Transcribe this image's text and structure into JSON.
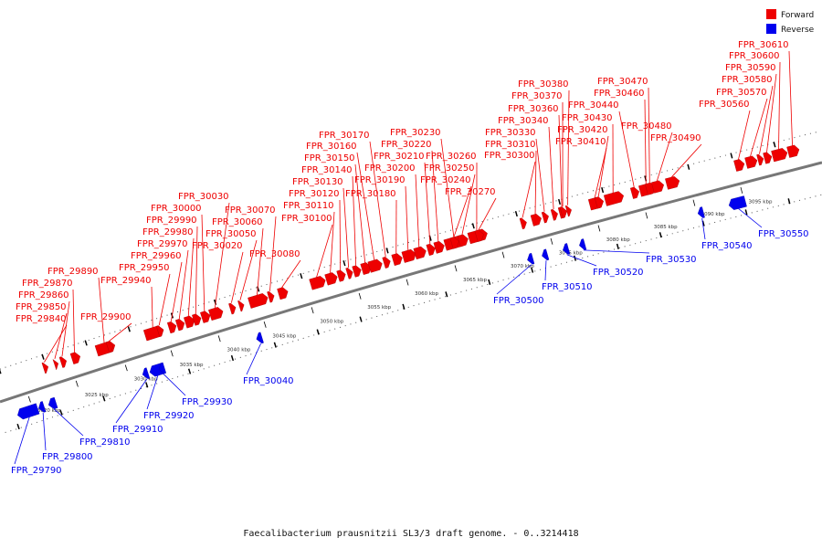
{
  "caption": "Faecalibacterium prausnitzii SL3/3 draft genome. - 0..3214418",
  "legend": [
    {
      "label": "Forward",
      "color": "#ee0000"
    },
    {
      "label": "Reverse",
      "color": "#0000ee"
    }
  ],
  "colors": {
    "forward": "#ee0000",
    "reverse": "#0000ee",
    "backbone": "#777777"
  },
  "scale_labels": [
    "3020 kbp",
    "3025 kbp",
    "3030 kbp",
    "3035 kbp",
    "3040 kbp",
    "3045 kbp",
    "3050 kbp",
    "3055 kbp",
    "3060 kbp",
    "3065 kbp",
    "3070 kbp",
    "3075 kbp",
    "3080 kbp",
    "3085 kbp",
    "3090 kbp",
    "3095 kbp"
  ],
  "forward_genes": [
    "FPR_29840",
    "FPR_29850",
    "FPR_29860",
    "FPR_29870",
    "FPR_29890",
    "FPR_29900",
    "FPR_29940",
    "FPR_29950",
    "FPR_29960",
    "FPR_29970",
    "FPR_29980",
    "FPR_29990",
    "FPR_30000",
    "FPR_30030",
    "FPR_30020",
    "FPR_30050",
    "FPR_30060",
    "FPR_30070",
    "FPR_30080",
    "FPR_30100",
    "FPR_30110",
    "FPR_30120",
    "FPR_30130",
    "FPR_30140",
    "FPR_30150",
    "FPR_30160",
    "FPR_30170",
    "FPR_30180",
    "FPR_30190",
    "FPR_30200",
    "FPR_30210",
    "FPR_30220",
    "FPR_30230",
    "FPR_30240",
    "FPR_30250",
    "FPR_30260",
    "FPR_30270",
    "FPR_30300",
    "FPR_30310",
    "FPR_30330",
    "FPR_30340",
    "FPR_30360",
    "FPR_30370",
    "FPR_30380",
    "FPR_30410",
    "FPR_30420",
    "FPR_30430",
    "FPR_30440",
    "FPR_30460",
    "FPR_30470",
    "FPR_30480",
    "FPR_30490",
    "FPR_30560",
    "FPR_30570",
    "FPR_30580",
    "FPR_30590",
    "FPR_30600",
    "FPR_30610"
  ],
  "reverse_genes": [
    "FPR_29790",
    "FPR_29800",
    "FPR_29810",
    "FPR_29910",
    "FPR_29920",
    "FPR_29930",
    "FPR_30040",
    "FPR_30500",
    "FPR_30510",
    "FPR_30520",
    "FPR_30530",
    "FPR_30540",
    "FPR_30550"
  ]
}
